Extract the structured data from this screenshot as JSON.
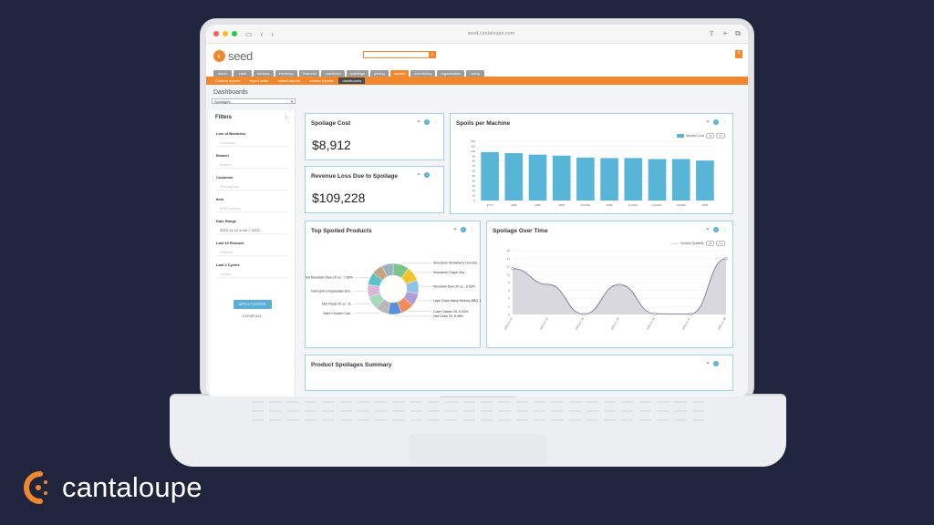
{
  "browser": {
    "address": "seed.cantaloupe.com"
  },
  "app": {
    "logo_text": "seed",
    "help_label": "?"
  },
  "main_nav": [
    "alerts",
    "cash",
    "devices",
    "inventory",
    "financial",
    "machines",
    "markings",
    "pricing",
    "reports",
    "scheduling",
    "organization",
    "setup"
  ],
  "main_nav_active_index": 8,
  "sub_nav": [
    "Custom reports",
    "report writer",
    "saved reports",
    "custom reports",
    "dashboards"
  ],
  "sub_nav_active_index": 4,
  "page": {
    "title": "Dashboards",
    "dashboard_select": "Spoilages"
  },
  "filters": {
    "title": "Filters",
    "fields": [
      {
        "label": "Line of Business",
        "value": "Locations"
      },
      {
        "label": "Branch",
        "value": "Branch"
      },
      {
        "label": "Customer",
        "value": "900 options"
      },
      {
        "label": "Item",
        "value": "9000 options"
      },
      {
        "label": "Date Range",
        "value": "2023-11-12 a.m0 > 2023..."
      },
      {
        "label": "Last 10 Restock",
        "value": "Restock"
      },
      {
        "label": "Last 2 Cycles",
        "value": "Cycles"
      }
    ],
    "apply_label": "APPLY FILTERS",
    "clear_label": "CLEAR ALL"
  },
  "cards": {
    "spoilage_cost": {
      "title": "Spoilage Cost",
      "value": "$8,912"
    },
    "revenue_loss": {
      "title": "Revenue Loss Due to Spoilage",
      "value": "$109,228"
    },
    "spoils_per_machine": {
      "title": "Spoils per Machine",
      "legend": "Spoiled Cost"
    },
    "top_spoiled": {
      "title": "Top Spoiled Products"
    },
    "spoilage_over_time": {
      "title": "Spoilage Over Time",
      "legend": "Spoiled Quantity"
    },
    "summary": {
      "title": "Product Spoilages Summary"
    }
  },
  "legend_buttons": [
    "All",
    "Clr"
  ],
  "brand": {
    "text": "cantaloupe"
  },
  "colors": {
    "accent": "#f0882e",
    "bar": "#58b5d8",
    "info": "#5aafd8"
  },
  "chart_data": [
    {
      "type": "bar",
      "title": "Spoils per Machine",
      "categories": [
        "4275",
        "4285",
        "4295",
        "4305",
        "VP1034",
        "4405",
        "H14201",
        "H14301",
        "H14401",
        "4545"
      ],
      "series": [
        {
          "name": "Spoiled Cost",
          "values": [
            98,
            96,
            93,
            91,
            87,
            86,
            86,
            84,
            84,
            81
          ]
        }
      ],
      "ylim": [
        0,
        120
      ],
      "yticks": [
        0,
        10,
        20,
        30,
        40,
        50,
        60,
        70,
        80,
        90,
        100,
        110,
        120
      ],
      "grid": true,
      "legend": "top-right"
    },
    {
      "type": "pie",
      "title": "Top Spoiled Products",
      "donut": true,
      "slices": [
        {
          "label": "Smuckers Strawberry Uncrust...",
          "value": 10,
          "color": "#7cc48a"
        },
        {
          "label": "Smuckers Grape Unc...",
          "value": 9,
          "color": "#f4c430"
        },
        {
          "label": "Mountain Dew 20 oz.: 8.53%",
          "value": 8.53,
          "color": "#8ec3e6"
        },
        {
          "label": "Lays Chips Wavy Hickory BBQ 1.5...",
          "value": 8,
          "color": "#b19cd9"
        },
        {
          "label": "Coke Classic 20: 8.43%",
          "value": 8.43,
          "color": "#f28c5b"
        },
        {
          "label": "Diet Coke 20: 8.48%",
          "value": 8.48,
          "color": "#5b8fd6"
        },
        {
          "label": "Slam Chicken Cae...",
          "value": 8,
          "color": "#b8b8b8"
        },
        {
          "label": "Diet Pepsi 20 oz.: 8...",
          "value": 8,
          "color": "#a7d9b8"
        },
        {
          "label": "Interrupte Empanadas Bon...",
          "value": 8,
          "color": "#d9b8d9"
        },
        {
          "label": "Diet Mountain Dew 20 oz.: 7.83%",
          "value": 7.83,
          "color": "#5bc2c8"
        },
        {
          "label": "",
          "value": 7,
          "color": "#c4a484"
        },
        {
          "label": "",
          "value": 7,
          "color": "#9bb0c1"
        }
      ]
    },
    {
      "type": "area",
      "title": "Spoilage Over Time",
      "x": [
        "2023-11-12",
        "2023-11-13",
        "2023-11-14",
        "2023-11-15",
        "2023-11-16",
        "2023-11-17",
        "2023-11-18"
      ],
      "series": [
        {
          "name": "Spoiled Quantity",
          "values": [
            11.5,
            7.5,
            0.1,
            7.5,
            0.2,
            0.1,
            14
          ]
        }
      ],
      "ylim": [
        0,
        16
      ],
      "yticks": [
        0,
        2,
        4,
        6,
        8,
        10,
        12,
        14,
        16
      ],
      "grid": true,
      "legend": "top-right"
    }
  ]
}
